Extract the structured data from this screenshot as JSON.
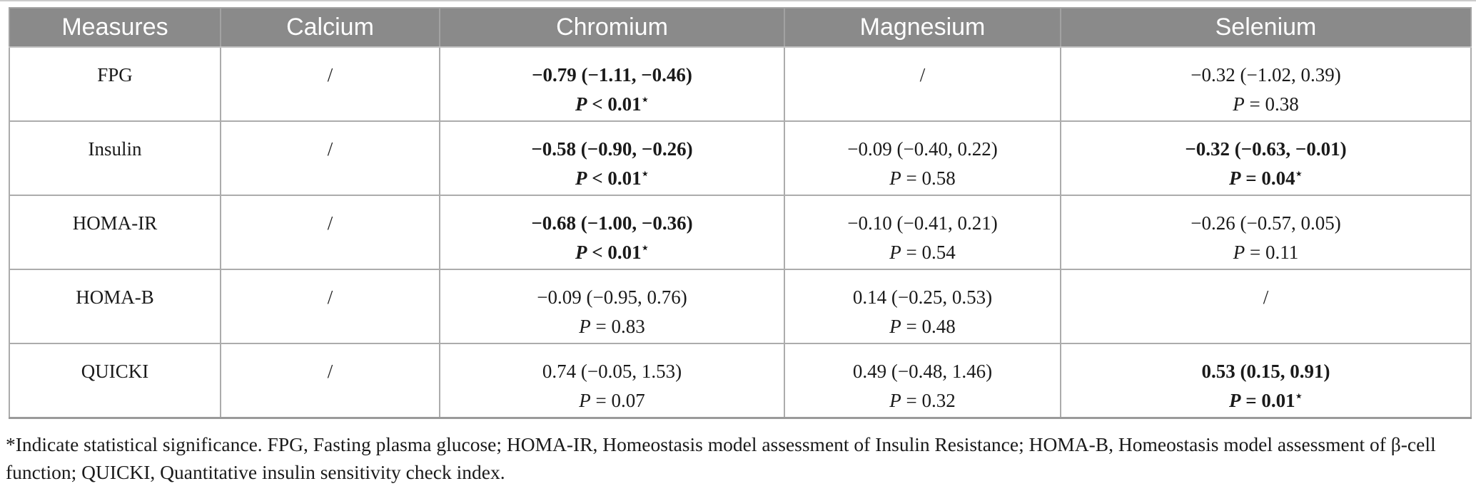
{
  "colors": {
    "header_bg": "#8a8a8a",
    "header_text": "#ffffff",
    "grid_line": "#acacac"
  },
  "table": {
    "columns": [
      "Measures",
      "Calcium",
      "Chromium",
      "Magnesium",
      "Selenium"
    ],
    "rows": [
      {
        "measure": "FPG",
        "cells": [
          {
            "value": "/"
          },
          {
            "value": "−0.79 (−1.11, −0.46)",
            "p": "P < 0.01",
            "significant": true,
            "bold": true
          },
          {
            "value": "/"
          },
          {
            "value": "−0.32 (−1.02, 0.39)",
            "p": "P = 0.38",
            "significant": false,
            "bold": false
          }
        ]
      },
      {
        "measure": "Insulin",
        "cells": [
          {
            "value": "/"
          },
          {
            "value": "−0.58 (−0.90, −0.26)",
            "p": "P < 0.01",
            "significant": true,
            "bold": true
          },
          {
            "value": "−0.09 (−0.40, 0.22)",
            "p": "P = 0.58",
            "significant": false,
            "bold": false
          },
          {
            "value": "−0.32 (−0.63, −0.01)",
            "p": "P = 0.04",
            "significant": true,
            "bold": true
          }
        ]
      },
      {
        "measure": "HOMA-IR",
        "cells": [
          {
            "value": "/"
          },
          {
            "value": "−0.68 (−1.00, −0.36)",
            "p": "P < 0.01",
            "significant": true,
            "bold": true
          },
          {
            "value": "−0.10 (−0.41, 0.21)",
            "p": "P = 0.54",
            "significant": false,
            "bold": false
          },
          {
            "value": "−0.26 (−0.57, 0.05)",
            "p": "P = 0.11",
            "significant": false,
            "bold": false
          }
        ]
      },
      {
        "measure": "HOMA-B",
        "cells": [
          {
            "value": "/"
          },
          {
            "value": "−0.09 (−0.95, 0.76)",
            "p": "P = 0.83",
            "significant": false,
            "bold": false
          },
          {
            "value": "0.14 (−0.25, 0.53)",
            "p": "P = 0.48",
            "significant": false,
            "bold": false
          },
          {
            "value": "/"
          }
        ]
      },
      {
        "measure": "QUICKI",
        "cells": [
          {
            "value": "/"
          },
          {
            "value": "0.74 (−0.05, 1.53)",
            "p": "P = 0.07",
            "significant": false,
            "bold": false
          },
          {
            "value": "0.49 (−0.48, 1.46)",
            "p": "P = 0.32",
            "significant": false,
            "bold": false
          },
          {
            "value": "0.53 (0.15, 0.91)",
            "p": "P = 0.01",
            "significant": true,
            "bold": true
          }
        ]
      }
    ]
  },
  "significance_marker": "⋆",
  "footnote": {
    "text": "*Indicate statistical significance. FPG, Fasting plasma glucose; HOMA-IR, Homeostasis model assessment of Insulin Resistance; HOMA-B, Homeostasis model assessment of β-cell function; QUICKI, Quantitative insulin sensitivity check index."
  }
}
